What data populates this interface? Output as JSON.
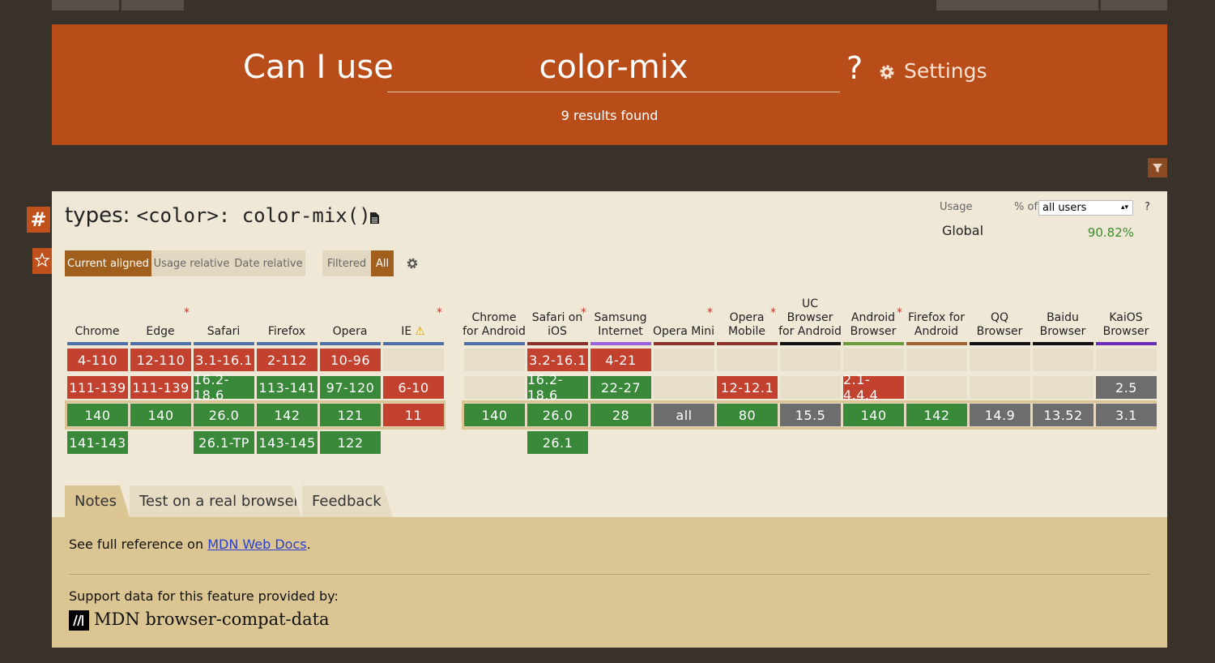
{
  "header": {
    "title": "Can I use",
    "query": "color-mix",
    "help": "?",
    "settings": "Settings",
    "results": "9 results found"
  },
  "feature": {
    "anchor": "#",
    "prefix": "types:",
    "code": "<color>: color-mix()"
  },
  "usage": {
    "label": "Usage",
    "percent_of": "% of",
    "select": "all users",
    "help": "?",
    "region": "Global",
    "value": "90.82%"
  },
  "view_tabs": [
    "Current aligned",
    "Usage relative",
    "Date relative"
  ],
  "filter_tabs": [
    "Filtered",
    "All"
  ],
  "desktop": [
    {
      "name": "Chrome",
      "color": "#4f6fa8",
      "cells": [
        {
          "text": "4-110",
          "support": "n"
        },
        {
          "text": "111-139",
          "support": "n"
        },
        {
          "text": "140",
          "support": "y"
        },
        {
          "text": "141-143",
          "support": "y"
        }
      ]
    },
    {
      "name": "Edge",
      "color": "#4f6fa8",
      "note": "*",
      "cells": [
        {
          "text": "12-110",
          "support": "n"
        },
        {
          "text": "111-139",
          "support": "n"
        },
        {
          "text": "140",
          "support": "y"
        },
        null
      ]
    },
    {
      "name": "Safari",
      "color": "#4f6fa8",
      "cells": [
        {
          "text": "3.1-16.1",
          "support": "n"
        },
        {
          "text": "16.2-18.6",
          "support": "y"
        },
        {
          "text": "26.0",
          "support": "y"
        },
        {
          "text": "26.1-TP",
          "support": "y"
        }
      ]
    },
    {
      "name": "Firefox",
      "color": "#4f6fa8",
      "cells": [
        {
          "text": "2-112",
          "support": "n"
        },
        {
          "text": "113-141",
          "support": "y"
        },
        {
          "text": "142",
          "support": "y"
        },
        {
          "text": "143-145",
          "support": "y"
        }
      ]
    },
    {
      "name": "Opera",
      "color": "#4f6fa8",
      "cells": [
        {
          "text": "10-96",
          "support": "n"
        },
        {
          "text": "97-120",
          "support": "y"
        },
        {
          "text": "121",
          "support": "y"
        },
        {
          "text": "122",
          "support": "y"
        }
      ]
    },
    {
      "name": "IE",
      "color": "#4f6fa8",
      "warning": "⚠",
      "note": "*",
      "cells": [
        null,
        {
          "text": "6-10",
          "support": "n"
        },
        {
          "text": "11",
          "support": "n"
        },
        null
      ]
    }
  ],
  "mobile": [
    {
      "name": "Chrome for Android",
      "color": "#4f6fa8",
      "cells": [
        null,
        null,
        {
          "text": "140",
          "support": "y"
        },
        null
      ]
    },
    {
      "name": "Safari on iOS",
      "color": "#8a2f2a",
      "note": "*",
      "cells": [
        {
          "text": "3.2-16.1",
          "support": "n"
        },
        {
          "text": "16.2-18.6",
          "support": "y"
        },
        {
          "text": "26.0",
          "support": "y"
        },
        {
          "text": "26.1",
          "support": "y"
        }
      ]
    },
    {
      "name": "Samsung Internet",
      "color": "#9a62e0",
      "cells": [
        {
          "text": "4-21",
          "support": "n"
        },
        {
          "text": "22-27",
          "support": "y"
        },
        {
          "text": "28",
          "support": "y"
        },
        null
      ]
    },
    {
      "name": "Opera Mini",
      "color": "#8a2f2a",
      "note": "*",
      "cells": [
        null,
        null,
        {
          "text": "all",
          "support": "u"
        },
        null
      ]
    },
    {
      "name": "Opera Mobile",
      "color": "#8a2f2a",
      "note": "*",
      "cells": [
        null,
        {
          "text": "12-12.1",
          "support": "n"
        },
        {
          "text": "80",
          "support": "y"
        },
        null
      ]
    },
    {
      "name": "UC Browser for Android",
      "color": "#111111",
      "cells": [
        null,
        null,
        {
          "text": "15.5",
          "support": "u"
        },
        null
      ]
    },
    {
      "name": "Android Browser",
      "color": "#6a9a3c",
      "note": "*",
      "cells": [
        null,
        {
          "text": "2.1-4.4.4",
          "support": "n"
        },
        {
          "text": "140",
          "support": "y"
        },
        null
      ]
    },
    {
      "name": "Firefox for Android",
      "color": "#a0622e",
      "cells": [
        null,
        null,
        {
          "text": "142",
          "support": "y"
        },
        null
      ]
    },
    {
      "name": "QQ Browser",
      "color": "#111111",
      "cells": [
        null,
        null,
        {
          "text": "14.9",
          "support": "u"
        },
        null
      ]
    },
    {
      "name": "Baidu Browser",
      "color": "#111111",
      "cells": [
        null,
        null,
        {
          "text": "13.52",
          "support": "u"
        },
        null
      ]
    },
    {
      "name": "KaiOS Browser",
      "color": "#6a2db8",
      "cells": [
        null,
        {
          "text": "2.5",
          "support": "u"
        },
        {
          "text": "3.1",
          "support": "u"
        },
        null
      ]
    }
  ],
  "tabs": [
    "Notes",
    "Test on a real browser",
    "Feedback"
  ],
  "notes": {
    "text": "See full reference on ",
    "link": "MDN Web Docs",
    "end": ".",
    "provided": "Support data for this feature provided by:",
    "source": "MDN browser-compat-data"
  }
}
